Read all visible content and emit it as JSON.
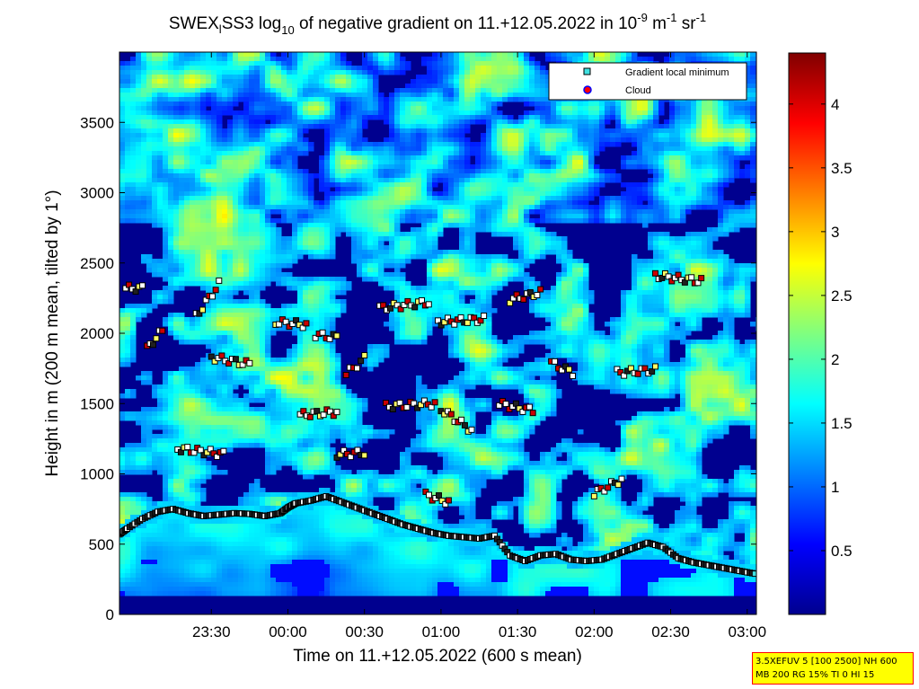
{
  "chart_data": {
    "type": "heatmap",
    "title": {
      "prefix": "SWEX",
      "prefix_sub": "l",
      "part1": "SS3 log",
      "log_sub": "10",
      "part2": " of negative gradient on 11.+12.05.2022 in 10",
      "exp1": "-9",
      "part3": " m",
      "exp2": "-1",
      "part4": " sr",
      "exp3": "-1"
    },
    "xlabel": "Time on 11.+12.05.2022 (600 s mean)",
    "ylabel": "Height in m (200 m mean, tilted by 1°)",
    "x_axis": {
      "start_hours": -1.1,
      "end_hours": 3.06,
      "ticks": [
        {
          "value": -0.5,
          "label": "23:30"
        },
        {
          "value": 0.0,
          "label": "00:00"
        },
        {
          "value": 0.5,
          "label": "00:30"
        },
        {
          "value": 1.0,
          "label": "01:00"
        },
        {
          "value": 1.5,
          "label": "01:30"
        },
        {
          "value": 2.0,
          "label": "02:00"
        },
        {
          "value": 2.5,
          "label": "02:30"
        },
        {
          "value": 3.0,
          "label": "03:00"
        }
      ]
    },
    "y_axis": {
      "min": 0,
      "max": 4000,
      "ticks": [
        0,
        500,
        1000,
        1500,
        2000,
        2500,
        3000,
        3500
      ]
    },
    "colorbar": {
      "min": 0,
      "max": 4.4,
      "ticks": [
        0.5,
        1,
        1.5,
        2,
        2.5,
        3,
        3.5,
        4
      ],
      "tick_labels": [
        "0.5",
        "1",
        "1.5",
        "2",
        "2.5",
        "3",
        "3.5",
        "4"
      ],
      "colormap": "jet"
    },
    "legend": {
      "placement": "top-right",
      "entries": [
        {
          "label": "Gradient local minimum",
          "marker": "square",
          "color": "#40e0e0"
        },
        {
          "label": "Cloud",
          "marker": "circle",
          "color": "#ff0000",
          "edge": "#0000ff"
        }
      ]
    },
    "boundary_layer_markers": {
      "series_name": "Gradient local minimum",
      "x": [
        -1.1,
        -1.05,
        -0.95,
        -0.85,
        -0.75,
        -0.65,
        -0.55,
        -0.45,
        -0.35,
        -0.25,
        -0.15,
        -0.05,
        0.0,
        0.05,
        0.15,
        0.25,
        0.35,
        0.45,
        0.55,
        0.65,
        0.75,
        0.85,
        0.95,
        1.05,
        1.15,
        1.25,
        1.35,
        1.45,
        1.55,
        1.65,
        1.75,
        1.85,
        1.95,
        2.05,
        2.15,
        2.25,
        2.35,
        2.45,
        2.55,
        2.65,
        2.75,
        2.85,
        2.95,
        3.05
      ],
      "y": [
        570,
        610,
        680,
        730,
        750,
        720,
        700,
        710,
        720,
        715,
        700,
        720,
        760,
        790,
        810,
        840,
        800,
        760,
        720,
        680,
        640,
        610,
        580,
        560,
        550,
        540,
        560,
        420,
        380,
        420,
        430,
        390,
        380,
        390,
        430,
        470,
        510,
        480,
        400,
        370,
        350,
        330,
        310,
        290
      ]
    },
    "layer_markers": [
      {
        "x_start": -1.06,
        "x_end": -0.95,
        "y_start": 2320,
        "y_end": 2320
      },
      {
        "x_start": -0.92,
        "x_end": -0.82,
        "y_start": 1890,
        "y_end": 2020
      },
      {
        "x_start": -0.6,
        "x_end": -0.45,
        "y_start": 2120,
        "y_end": 2350
      },
      {
        "x_start": -0.5,
        "x_end": -0.25,
        "y_start": 1830,
        "y_end": 1780
      },
      {
        "x_start": -0.08,
        "x_end": 0.12,
        "y_start": 2080,
        "y_end": 2060
      },
      {
        "x_start": 0.18,
        "x_end": 0.32,
        "y_start": 1990,
        "y_end": 1970
      },
      {
        "x_start": 0.38,
        "x_end": 0.5,
        "y_start": 1710,
        "y_end": 1820
      },
      {
        "x_start": 0.6,
        "x_end": 0.92,
        "y_start": 2180,
        "y_end": 2220
      },
      {
        "x_start": 0.64,
        "x_end": 0.96,
        "y_start": 1480,
        "y_end": 1500
      },
      {
        "x_start": 0.98,
        "x_end": 1.28,
        "y_start": 2080,
        "y_end": 2100
      },
      {
        "x_start": 1.0,
        "x_end": 1.2,
        "y_start": 1460,
        "y_end": 1310
      },
      {
        "x_start": 1.45,
        "x_end": 1.65,
        "y_start": 2240,
        "y_end": 2290
      },
      {
        "x_start": 1.38,
        "x_end": 1.6,
        "y_start": 1500,
        "y_end": 1450
      },
      {
        "x_start": 1.72,
        "x_end": 1.86,
        "y_start": 1790,
        "y_end": 1720
      },
      {
        "x_start": 2.15,
        "x_end": 2.4,
        "y_start": 1720,
        "y_end": 1740
      },
      {
        "x_start": 2.4,
        "x_end": 2.7,
        "y_start": 2410,
        "y_end": 2370
      },
      {
        "x_start": -0.72,
        "x_end": -0.42,
        "y_start": 1180,
        "y_end": 1140
      },
      {
        "x_start": 0.32,
        "x_end": 0.5,
        "y_start": 1140,
        "y_end": 1150
      },
      {
        "x_start": 2.0,
        "x_end": 2.18,
        "y_start": 860,
        "y_end": 960
      },
      {
        "x_start": 0.08,
        "x_end": 0.32,
        "y_start": 1420,
        "y_end": 1440
      },
      {
        "x_start": 0.9,
        "x_end": 1.05,
        "y_start": 850,
        "y_end": 800
      }
    ]
  },
  "info_box": {
    "line1": "3.5XEFUV 5 [100 2500] NH 600",
    "line2": "MB 200 RG 15% TI 0 HI 15"
  }
}
